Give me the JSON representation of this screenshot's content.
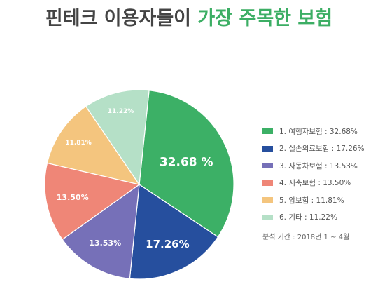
{
  "title": {
    "part1": "핀테크 이용자들이",
    "part2": "가장 주목한 보험"
  },
  "chart_data": {
    "type": "pie",
    "start_angle_deg": -84,
    "slices": [
      {
        "label": "32.68 %",
        "legend": "1. 여행자보험 : 32.68%",
        "value": 32.68,
        "color": "#3cb066"
      },
      {
        "label": "17.26%",
        "legend": "2. 실손의료보험 : 17.26%",
        "value": 17.26,
        "color": "#264f9e"
      },
      {
        "label": "13.53%",
        "legend": "3. 자동차보험 : 13.53%",
        "value": 13.53,
        "color": "#7670b8"
      },
      {
        "label": "13.50%",
        "legend": "4. 저축보험 : 13.50%",
        "value": 13.5,
        "color": "#ef8677"
      },
      {
        "label": "11.81%",
        "legend": "5. 암보험 : 11.81%",
        "value": 11.81,
        "color": "#f4c57e"
      },
      {
        "label": "11.22%",
        "legend": "6. 기타 : 11.22%",
        "value": 11.22,
        "color": "#b5e0c7"
      }
    ],
    "legend_position": "right"
  },
  "note": "분석 기간 : 2018년 1 ~ 4월"
}
